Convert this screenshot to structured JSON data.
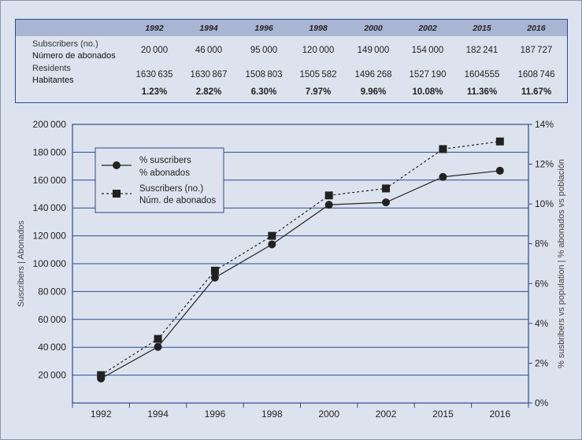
{
  "table": {
    "years": [
      "1992",
      "1994",
      "1996",
      "1998",
      "2000",
      "2002",
      "2015",
      "2016"
    ],
    "rows": [
      {
        "label_en": "Subscribers (no.)",
        "label_es": "Número de abonados",
        "values": [
          "20 000",
          "46 000",
          "95 000",
          "120 000",
          "149 000",
          "154 000",
          "182 241",
          "187 727"
        ]
      },
      {
        "label_en": "Residents",
        "label_es": "Habitantes",
        "values": [
          "1630 635",
          "1630 867",
          "1508 803",
          "1505 582",
          "1496 268",
          "1527 190",
          "1604555",
          "1608 746"
        ]
      }
    ],
    "percentages": [
      "1.23%",
      "2.82%",
      "6.30%",
      "7.97%",
      "9.96%",
      "10.08%",
      "11.36%",
      "11.67%"
    ]
  },
  "chart_data": {
    "type": "line",
    "categories": [
      "1992",
      "1994",
      "1996",
      "1998",
      "2000",
      "2002",
      "2015",
      "2016"
    ],
    "series": [
      {
        "name": "% suscribers / % abonados",
        "axis": "right",
        "style": "solid",
        "marker": "circle",
        "values": [
          1.23,
          2.82,
          6.3,
          7.97,
          9.96,
          10.08,
          11.36,
          11.67
        ]
      },
      {
        "name": "Suscribers (no.) / Núm. de abonados",
        "axis": "left",
        "style": "dashed",
        "marker": "square",
        "values": [
          20000,
          46000,
          95000,
          120000,
          149000,
          154000,
          182241,
          187727
        ]
      }
    ],
    "left_axis": {
      "label": "Suscribers | Abonados",
      "ticks": [
        "20 000",
        "40 000",
        "60 000",
        "80 000",
        "100 000",
        "120 000",
        "140 000",
        "160 000",
        "180 000",
        "200 000"
      ],
      "tick_values": [
        20000,
        40000,
        60000,
        80000,
        100000,
        120000,
        140000,
        160000,
        180000,
        200000
      ],
      "min": 0,
      "max": 200000
    },
    "right_axis": {
      "label": "% susbribers vs population | % abonados vs población",
      "ticks": [
        "0%",
        "2%",
        "4%",
        "6%",
        "8%",
        "10%",
        "12%",
        "14%"
      ],
      "tick_values": [
        0,
        2,
        4,
        6,
        8,
        10,
        12,
        14
      ],
      "min": 0,
      "max": 14
    },
    "legend": {
      "placement": "top-left",
      "entries": [
        {
          "line1": "% suscribers",
          "line2": "% abonados",
          "marker": "circle",
          "style": "solid"
        },
        {
          "line1": "Suscribers (no.)",
          "line2": "Núm. de abonados",
          "marker": "square",
          "style": "dashed"
        }
      ]
    },
    "grid": true,
    "colors": {
      "grid": "#2d4a8f",
      "frame": "#2d4a8f",
      "series": "#222222"
    }
  }
}
